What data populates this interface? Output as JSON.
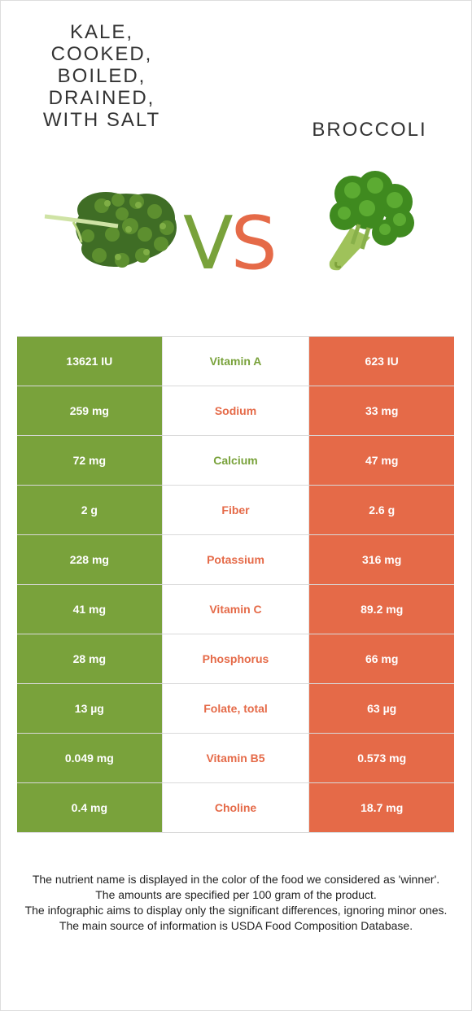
{
  "left_food": {
    "title": "KALE,\nCOOKED,\nBOILED,\nDRAINED,\nWITH SALT",
    "color": "#79a23b",
    "image_icon": "kale-leaf"
  },
  "right_food": {
    "title": "BROCCOLI",
    "color": "#e56a48",
    "image_icon": "broccoli-floret"
  },
  "vs": {
    "v": "V",
    "s": "S"
  },
  "rows": [
    {
      "left": "13621 IU",
      "nutrient": "Vitamin A",
      "right": "623 IU",
      "winner": "left"
    },
    {
      "left": "259 mg",
      "nutrient": "Sodium",
      "right": "33 mg",
      "winner": "right"
    },
    {
      "left": "72 mg",
      "nutrient": "Calcium",
      "right": "47 mg",
      "winner": "left"
    },
    {
      "left": "2 g",
      "nutrient": "Fiber",
      "right": "2.6 g",
      "winner": "right"
    },
    {
      "left": "228 mg",
      "nutrient": "Potassium",
      "right": "316 mg",
      "winner": "right"
    },
    {
      "left": "41 mg",
      "nutrient": "Vitamin C",
      "right": "89.2 mg",
      "winner": "right"
    },
    {
      "left": "28 mg",
      "nutrient": "Phosphorus",
      "right": "66 mg",
      "winner": "right"
    },
    {
      "left": "13 µg",
      "nutrient": "Folate, total",
      "right": "63 µg",
      "winner": "right"
    },
    {
      "left": "0.049 mg",
      "nutrient": "Vitamin B5",
      "right": "0.573 mg",
      "winner": "right"
    },
    {
      "left": "0.4 mg",
      "nutrient": "Choline",
      "right": "18.7 mg",
      "winner": "right"
    }
  ],
  "footer": [
    "The nutrient name is displayed in the color of the food we considered as 'winner'.",
    "The amounts are specified per 100 gram of the product.",
    "The infographic aims to display only the significant differences, ignoring minor ones.",
    "The main source of information is USDA Food Composition Database."
  ]
}
